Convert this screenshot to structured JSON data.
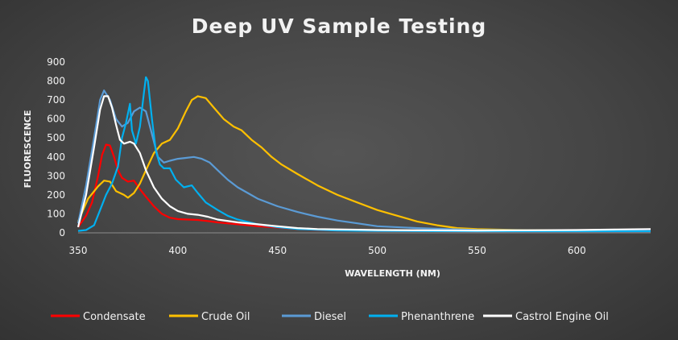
{
  "chart_data": {
    "type": "line",
    "title": "Deep UV Sample Testing",
    "xlabel": "WAVELENGTH (NM)",
    "ylabel": "FLUORESCENCE",
    "xlim": [
      350,
      637
    ],
    "ylim": [
      0,
      900
    ],
    "xticks": [
      350,
      400,
      450,
      500,
      550,
      600
    ],
    "yticks": [
      0,
      100,
      200,
      300,
      400,
      500,
      600,
      700,
      800,
      900
    ],
    "grid": false,
    "legend_position": "bottom",
    "series": [
      {
        "name": "Condensate",
        "color": "#ff0000",
        "points": [
          [
            350,
            30
          ],
          [
            354,
            90
          ],
          [
            357,
            160
          ],
          [
            360,
            300
          ],
          [
            362,
            410
          ],
          [
            364,
            465
          ],
          [
            366,
            460
          ],
          [
            368,
            400
          ],
          [
            370,
            330
          ],
          [
            372,
            290
          ],
          [
            375,
            270
          ],
          [
            378,
            275
          ],
          [
            381,
            230
          ],
          [
            384,
            190
          ],
          [
            388,
            140
          ],
          [
            392,
            100
          ],
          [
            396,
            80
          ],
          [
            400,
            72
          ],
          [
            405,
            70
          ],
          [
            410,
            68
          ],
          [
            415,
            62
          ],
          [
            420,
            55
          ],
          [
            430,
            45
          ],
          [
            440,
            35
          ],
          [
            450,
            28
          ],
          [
            460,
            20
          ],
          [
            470,
            15
          ],
          [
            480,
            12
          ],
          [
            500,
            10
          ],
          [
            550,
            8
          ],
          [
            600,
            8
          ],
          [
            637,
            8
          ]
        ]
      },
      {
        "name": "Crude Oil",
        "color": "#ffc000",
        "points": [
          [
            350,
            60
          ],
          [
            355,
            180
          ],
          [
            360,
            245
          ],
          [
            363,
            275
          ],
          [
            366,
            270
          ],
          [
            369,
            220
          ],
          [
            371,
            210
          ],
          [
            373,
            200
          ],
          [
            375,
            185
          ],
          [
            378,
            210
          ],
          [
            381,
            260
          ],
          [
            384,
            330
          ],
          [
            388,
            420
          ],
          [
            392,
            470
          ],
          [
            396,
            490
          ],
          [
            400,
            550
          ],
          [
            404,
            640
          ],
          [
            407,
            700
          ],
          [
            410,
            720
          ],
          [
            414,
            710
          ],
          [
            418,
            660
          ],
          [
            423,
            600
          ],
          [
            428,
            560
          ],
          [
            432,
            540
          ],
          [
            437,
            490
          ],
          [
            442,
            450
          ],
          [
            447,
            400
          ],
          [
            452,
            360
          ],
          [
            460,
            310
          ],
          [
            470,
            250
          ],
          [
            480,
            200
          ],
          [
            490,
            160
          ],
          [
            500,
            120
          ],
          [
            510,
            90
          ],
          [
            520,
            60
          ],
          [
            530,
            40
          ],
          [
            540,
            25
          ],
          [
            550,
            20
          ],
          [
            570,
            15
          ],
          [
            600,
            12
          ],
          [
            637,
            10
          ]
        ]
      },
      {
        "name": "Diesel",
        "color": "#5b9bd5",
        "points": [
          [
            350,
            50
          ],
          [
            354,
            250
          ],
          [
            358,
            500
          ],
          [
            361,
            700
          ],
          [
            363,
            750
          ],
          [
            366,
            700
          ],
          [
            369,
            600
          ],
          [
            372,
            560
          ],
          [
            375,
            580
          ],
          [
            378,
            640
          ],
          [
            381,
            660
          ],
          [
            384,
            640
          ],
          [
            387,
            520
          ],
          [
            390,
            400
          ],
          [
            393,
            370
          ],
          [
            396,
            380
          ],
          [
            400,
            390
          ],
          [
            404,
            395
          ],
          [
            408,
            400
          ],
          [
            412,
            390
          ],
          [
            416,
            370
          ],
          [
            420,
            330
          ],
          [
            425,
            280
          ],
          [
            430,
            240
          ],
          [
            435,
            210
          ],
          [
            440,
            180
          ],
          [
            450,
            140
          ],
          [
            460,
            110
          ],
          [
            470,
            85
          ],
          [
            480,
            65
          ],
          [
            490,
            50
          ],
          [
            500,
            35
          ],
          [
            520,
            25
          ],
          [
            550,
            15
          ],
          [
            600,
            12
          ],
          [
            637,
            10
          ]
        ]
      },
      {
        "name": "Phenanthrene",
        "color": "#00b0f0",
        "points": [
          [
            350,
            10
          ],
          [
            354,
            15
          ],
          [
            358,
            40
          ],
          [
            361,
            120
          ],
          [
            364,
            200
          ],
          [
            367,
            260
          ],
          [
            370,
            350
          ],
          [
            372,
            500
          ],
          [
            374,
            580
          ],
          [
            376,
            680
          ],
          [
            377,
            540
          ],
          [
            379,
            470
          ],
          [
            381,
            560
          ],
          [
            383,
            740
          ],
          [
            384,
            820
          ],
          [
            385,
            800
          ],
          [
            387,
            600
          ],
          [
            389,
            430
          ],
          [
            391,
            360
          ],
          [
            393,
            340
          ],
          [
            396,
            340
          ],
          [
            399,
            280
          ],
          [
            403,
            240
          ],
          [
            407,
            250
          ],
          [
            410,
            210
          ],
          [
            414,
            160
          ],
          [
            420,
            120
          ],
          [
            425,
            90
          ],
          [
            430,
            70
          ],
          [
            440,
            45
          ],
          [
            450,
            30
          ],
          [
            460,
            20
          ],
          [
            480,
            12
          ],
          [
            500,
            10
          ],
          [
            550,
            8
          ],
          [
            600,
            8
          ],
          [
            637,
            8
          ]
        ]
      },
      {
        "name": "Castrol Engine Oil",
        "color": "#ffffff",
        "points": [
          [
            350,
            30
          ],
          [
            354,
            200
          ],
          [
            358,
            450
          ],
          [
            361,
            650
          ],
          [
            363,
            720
          ],
          [
            365,
            720
          ],
          [
            367,
            660
          ],
          [
            369,
            570
          ],
          [
            371,
            490
          ],
          [
            373,
            470
          ],
          [
            376,
            480
          ],
          [
            378,
            470
          ],
          [
            381,
            420
          ],
          [
            384,
            330
          ],
          [
            388,
            240
          ],
          [
            392,
            180
          ],
          [
            396,
            140
          ],
          [
            400,
            115
          ],
          [
            405,
            100
          ],
          [
            410,
            95
          ],
          [
            415,
            85
          ],
          [
            420,
            70
          ],
          [
            430,
            55
          ],
          [
            440,
            45
          ],
          [
            450,
            35
          ],
          [
            460,
            25
          ],
          [
            470,
            20
          ],
          [
            500,
            15
          ],
          [
            550,
            12
          ],
          [
            600,
            15
          ],
          [
            620,
            18
          ],
          [
            637,
            20
          ]
        ]
      }
    ]
  }
}
